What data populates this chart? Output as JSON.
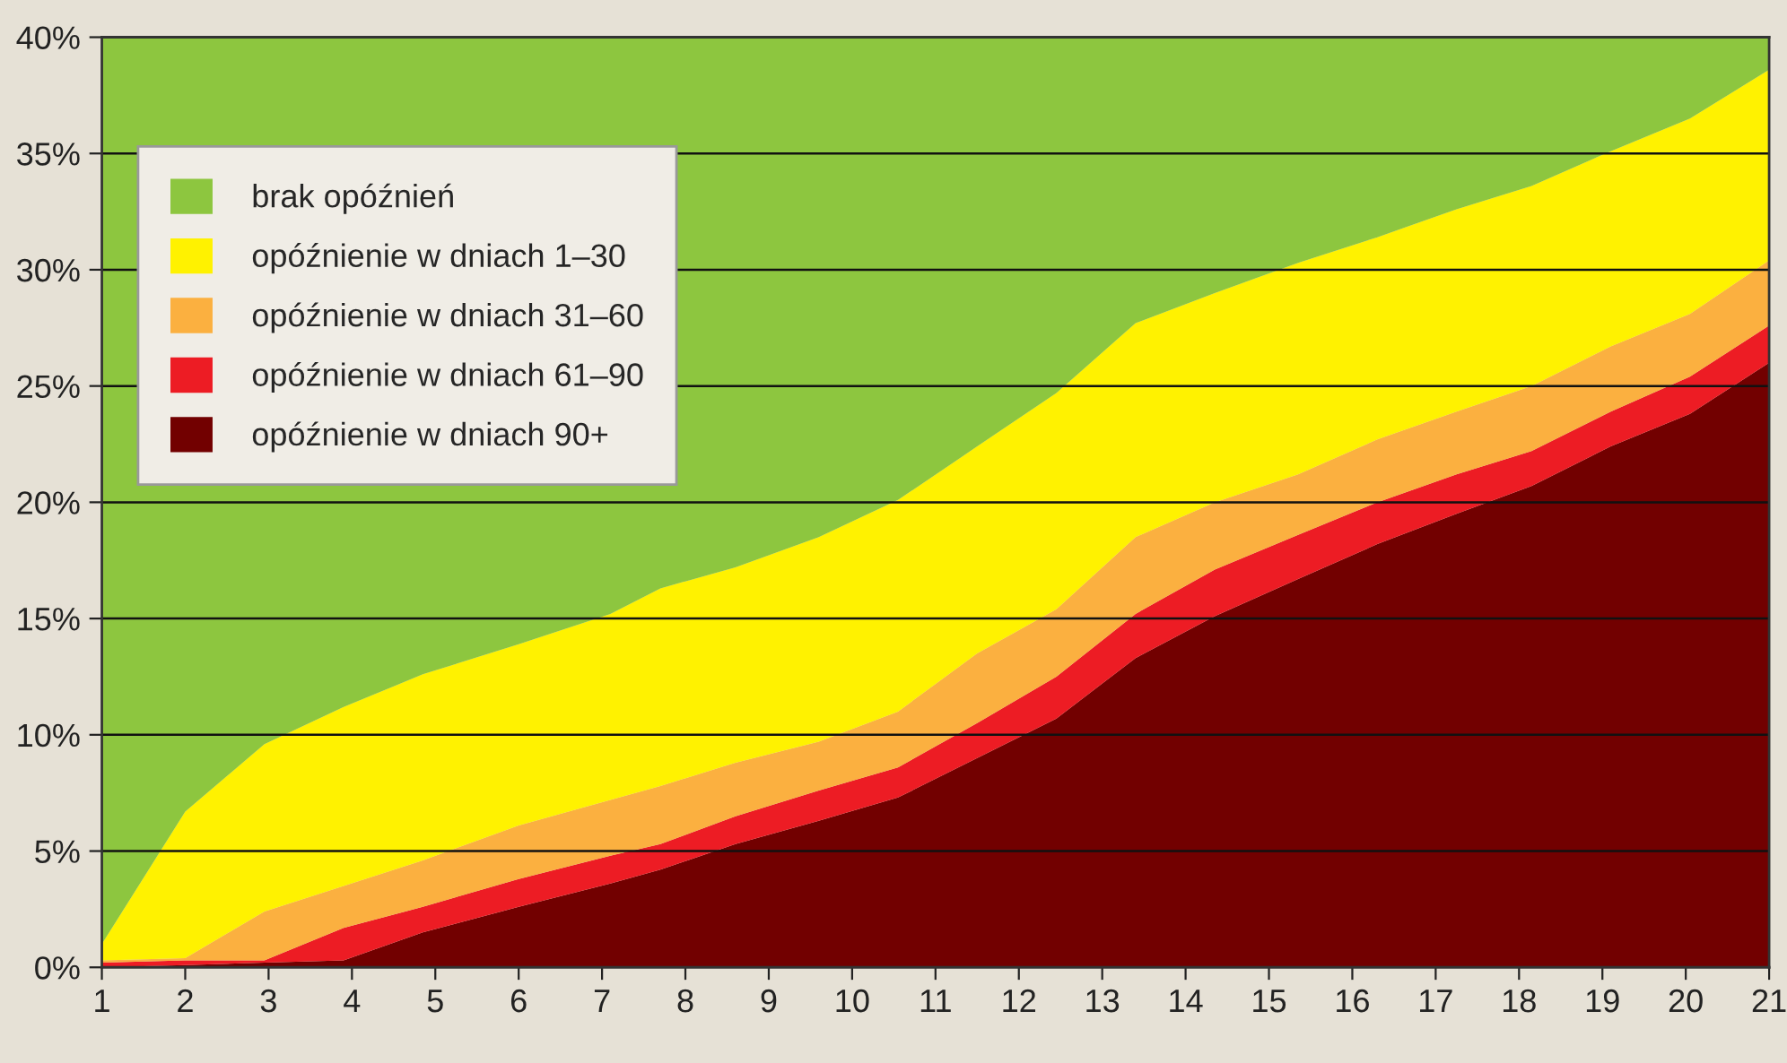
{
  "chart_data": {
    "type": "area",
    "x": [
      1,
      2,
      2.95,
      3.9,
      4.85,
      6,
      7.1,
      7.7,
      8.6,
      9.6,
      10.55,
      11.5,
      12.45,
      13.4,
      14.35,
      15.35,
      16.3,
      17.25,
      18.15,
      19.1,
      20.05,
      21
    ],
    "series": [
      {
        "name": "opóźnienie w dniach 90+",
        "color": "#720000",
        "values": [
          0.0,
          0.1,
          0.2,
          0.3,
          1.5,
          2.6,
          3.6,
          4.2,
          5.3,
          6.3,
          7.3,
          9.0,
          10.7,
          13.3,
          15.1,
          16.7,
          18.2,
          19.5,
          20.7,
          22.4,
          23.8,
          26.0
        ]
      },
      {
        "name": "opóźnienie w dniach 61–90",
        "color": "#ed1c24",
        "values": [
          0.2,
          0.2,
          0.1,
          1.4,
          1.1,
          1.2,
          1.2,
          1.1,
          1.2,
          1.3,
          1.3,
          1.5,
          1.8,
          1.9,
          2.0,
          1.9,
          1.8,
          1.7,
          1.5,
          1.5,
          1.6,
          1.6
        ]
      },
      {
        "name": "opóźnienie w dniach 31–60",
        "color": "#fbb040",
        "values": [
          0.1,
          0.1,
          2.1,
          1.8,
          2.0,
          2.3,
          2.4,
          2.5,
          2.3,
          2.1,
          2.4,
          3.0,
          2.9,
          3.3,
          2.9,
          2.6,
          2.7,
          2.7,
          2.8,
          2.8,
          2.7,
          2.8
        ]
      },
      {
        "name": "opóźnienie w dniach 1–30",
        "color": "#fff200",
        "values": [
          0.7,
          6.3,
          7.2,
          7.7,
          8.0,
          7.8,
          8.0,
          8.5,
          8.4,
          8.8,
          9.1,
          8.9,
          9.3,
          9.2,
          9.0,
          9.1,
          8.7,
          8.7,
          8.6,
          8.4,
          8.4,
          8.2
        ]
      },
      {
        "name": "brak opóźnień",
        "color": "#8dc63f",
        "values": [
          39.0,
          33.3,
          30.4,
          28.8,
          27.4,
          26.1,
          24.8,
          23.7,
          22.8,
          21.5,
          19.9,
          17.6,
          15.3,
          12.3,
          11.0,
          9.7,
          8.6,
          7.4,
          6.4,
          4.9,
          3.5,
          1.4
        ]
      }
    ],
    "stacked": true,
    "xlim": [
      1,
      21
    ],
    "ylim": [
      0,
      40
    ],
    "xticks": [
      1,
      2,
      3,
      4,
      5,
      6,
      7,
      8,
      9,
      10,
      11,
      12,
      13,
      14,
      15,
      16,
      17,
      18,
      19,
      20,
      21
    ],
    "yticks": [
      {
        "value": 0,
        "label": "0%"
      },
      {
        "value": 5,
        "label": "5%"
      },
      {
        "value": 10,
        "label": "10%"
      },
      {
        "value": 15,
        "label": "15%"
      },
      {
        "value": 20,
        "label": "20%"
      },
      {
        "value": 25,
        "label": "25%"
      },
      {
        "value": 30,
        "label": "30%"
      },
      {
        "value": 35,
        "label": "35%"
      },
      {
        "value": 40,
        "label": "40%"
      }
    ],
    "grid": "y",
    "legend": "top left"
  }
}
